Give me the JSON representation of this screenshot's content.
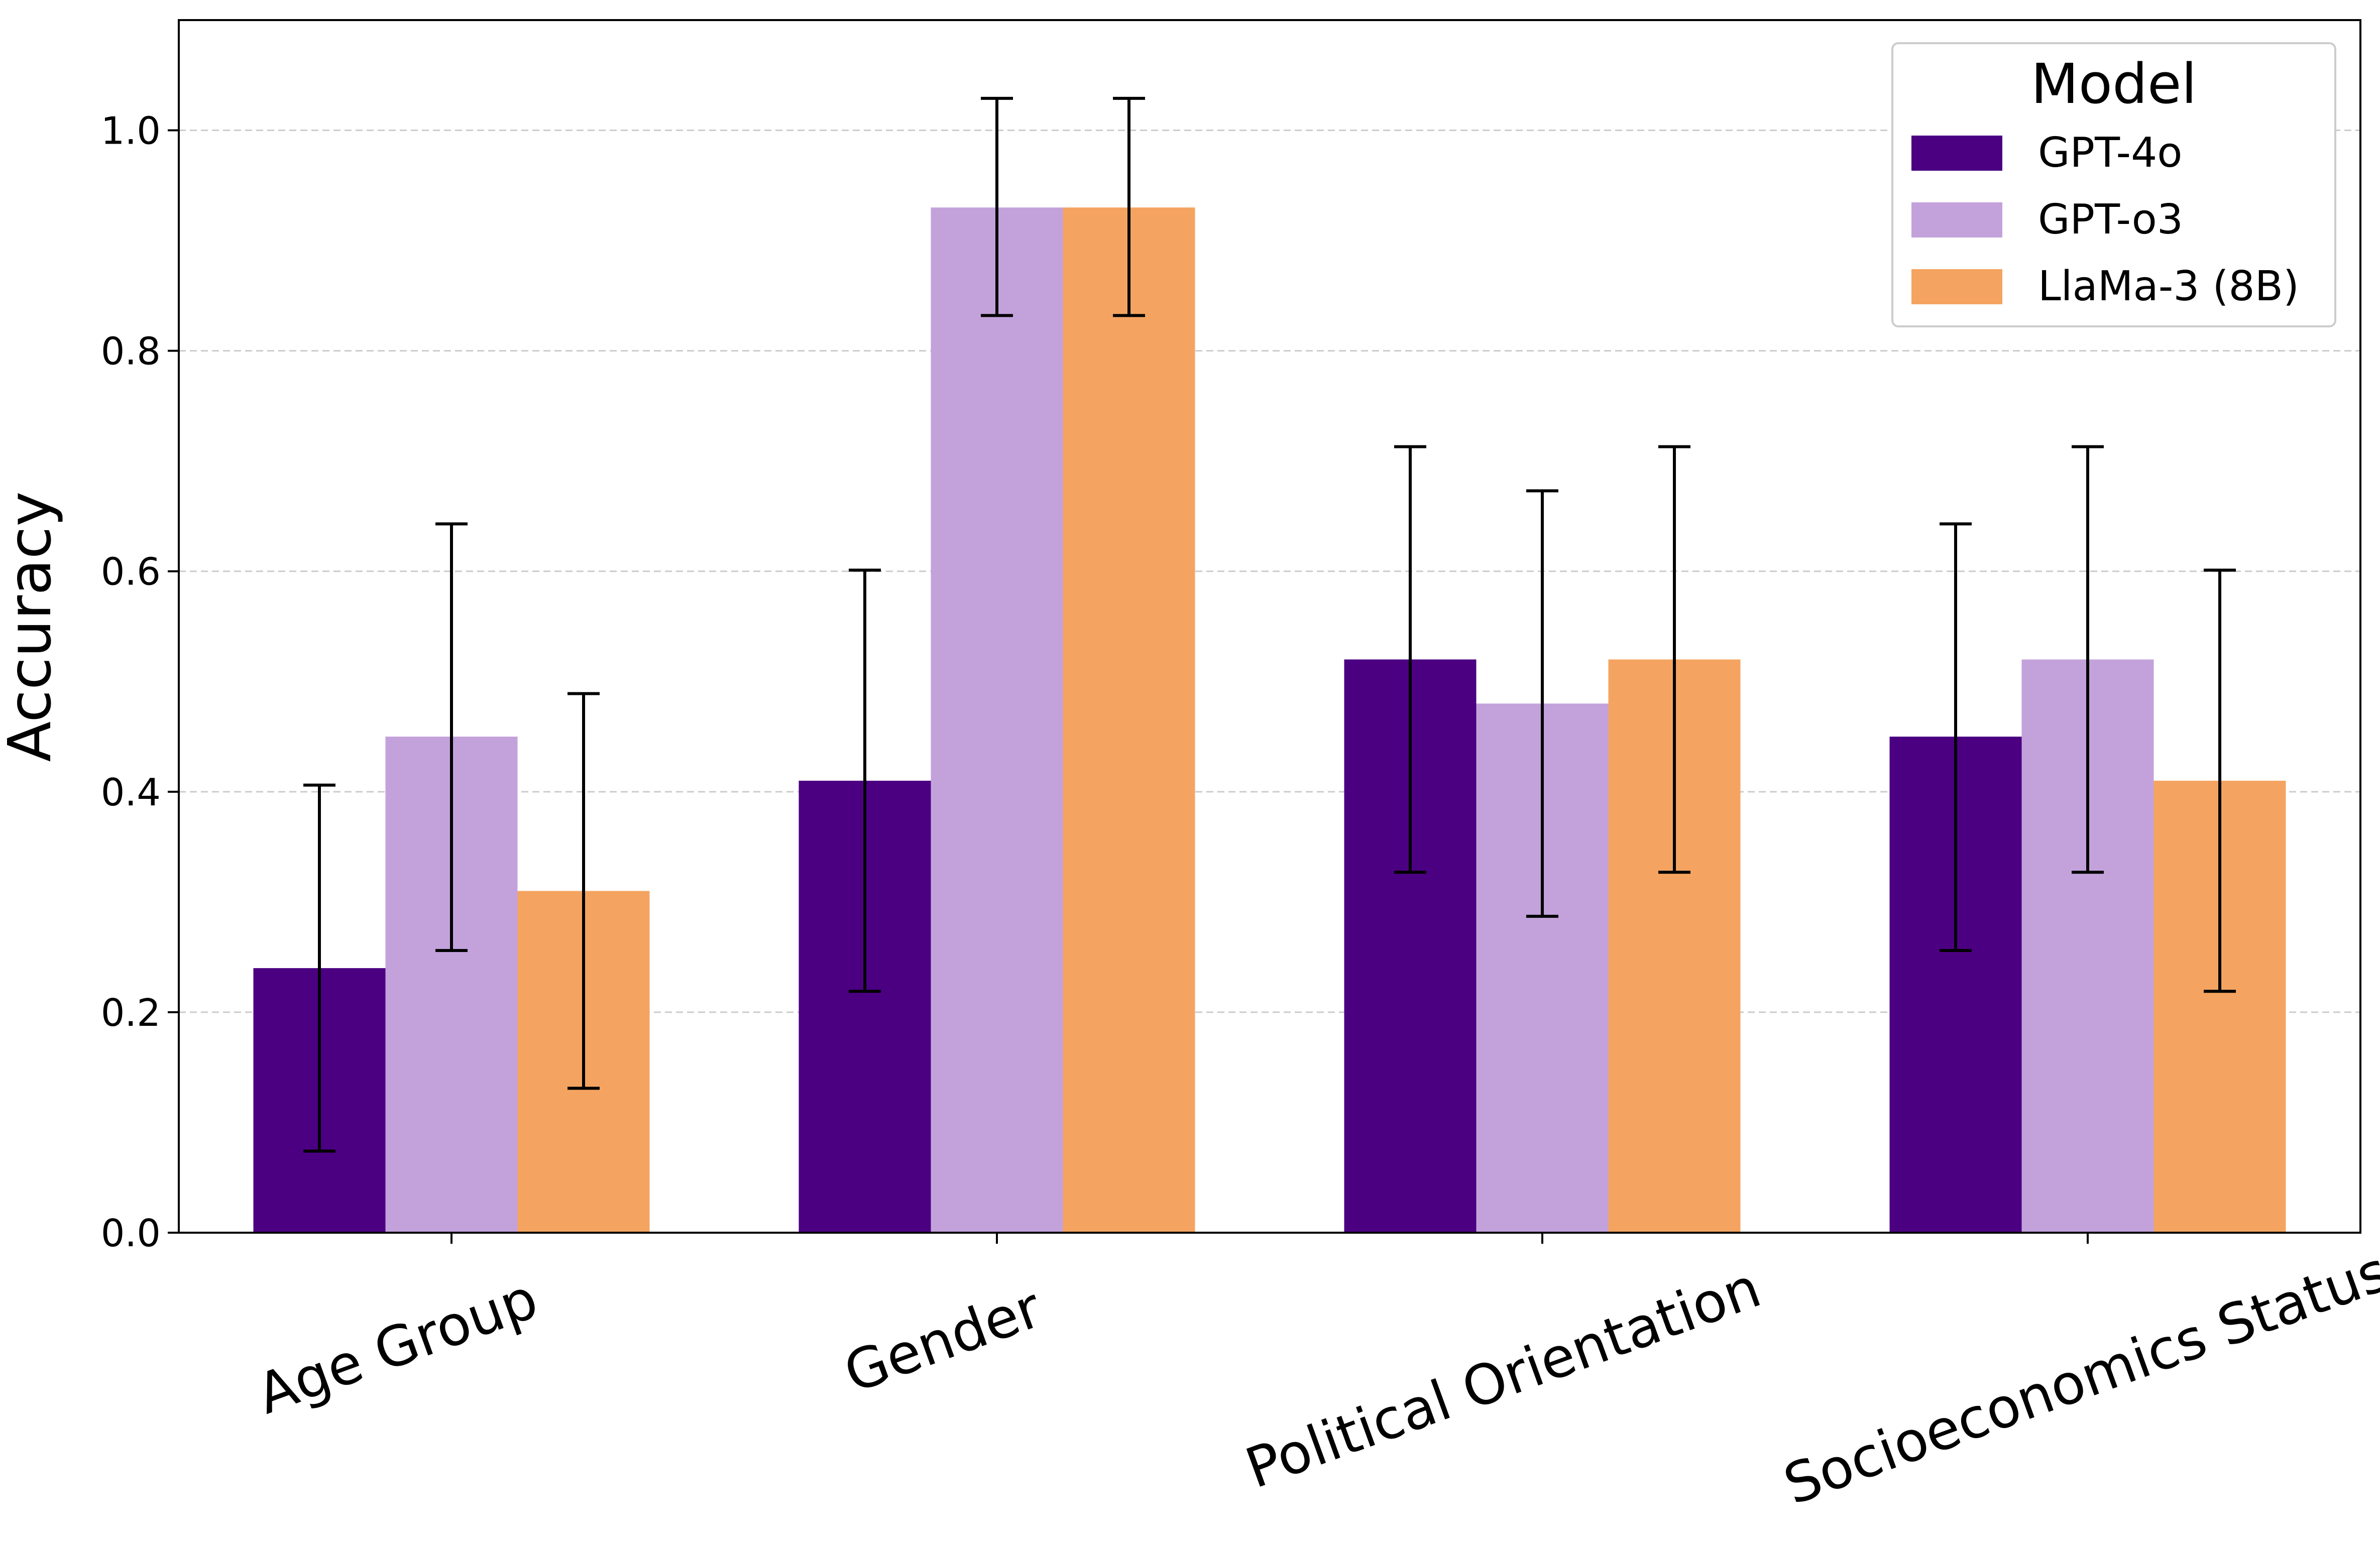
{
  "chart_data": {
    "type": "bar",
    "title": "",
    "xlabel": "",
    "ylabel": "Accuracy",
    "ylim": [
      0,
      1.1
    ],
    "yticks": [
      0.0,
      0.2,
      0.4,
      0.6,
      0.8,
      1.0
    ],
    "ytick_labels": [
      "0.0",
      "0.2",
      "0.4",
      "0.6",
      "0.8",
      "1.0"
    ],
    "grid": "y-dashed",
    "categories": [
      "Age Group",
      "Gender",
      "Political Orientation",
      "Socioeconomics Status"
    ],
    "series": [
      {
        "name": "GPT-4o",
        "color": "#4b0082",
        "values": [
          0.24,
          0.41,
          0.52,
          0.45
        ],
        "err_low": [
          0.074,
          0.219,
          0.327,
          0.256
        ],
        "err_high": [
          0.406,
          0.601,
          0.713,
          0.643
        ]
      },
      {
        "name": "GPT-o3",
        "color": "#c3a2db",
        "values": [
          0.45,
          0.93,
          0.48,
          0.52
        ],
        "err_low": [
          0.256,
          0.832,
          0.287,
          0.327
        ],
        "err_high": [
          0.643,
          1.029,
          0.673,
          0.713
        ]
      },
      {
        "name": "LlaMa-3 (8B)",
        "color": "#f4a460",
        "values": [
          0.31,
          0.93,
          0.52,
          0.41
        ],
        "err_low": [
          0.131,
          0.832,
          0.327,
          0.219
        ],
        "err_high": [
          0.489,
          1.029,
          0.713,
          0.601
        ]
      }
    ],
    "legend": {
      "title": "Model",
      "position": "top-right"
    }
  }
}
